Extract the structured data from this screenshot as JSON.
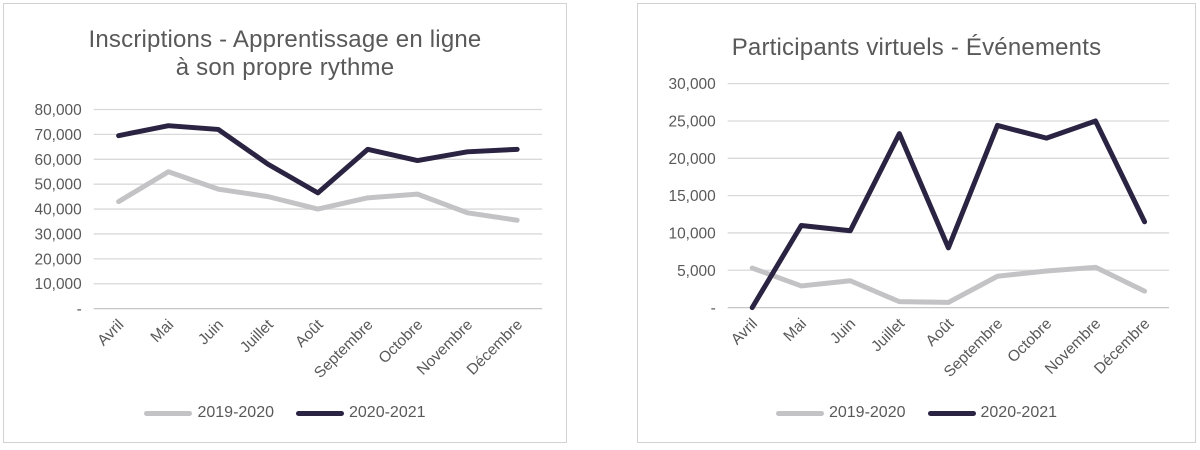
{
  "page": {
    "background_color": "#ffffff",
    "panel_border_color": "#d2d2d2",
    "text_color": "#595959",
    "gridline_color": "#d9d9d9",
    "axis_line_color": "#c6c6c6"
  },
  "chart_data": [
    {
      "type": "line",
      "title": "Inscriptions - Apprentissage en ligne à son propre rythme",
      "title_lines": [
        "Inscriptions - Apprentissage en ligne",
        "à son propre rythme"
      ],
      "categories": [
        "Avril",
        "Mai",
        "Juin",
        "Juillet",
        "Août",
        "Septembre",
        "Octobre",
        "Novembre",
        "Décembre"
      ],
      "series": [
        {
          "name": "2019-2020",
          "color": "#c3c2c4",
          "values": [
            43000,
            55000,
            48000,
            45000,
            40000,
            44500,
            46000,
            38500,
            35500
          ]
        },
        {
          "name": "2020-2021",
          "color": "#2b2342",
          "values": [
            69500,
            73500,
            72000,
            58000,
            46500,
            64000,
            59500,
            63000,
            64000
          ]
        }
      ],
      "ylim": [
        0,
        80000
      ],
      "ytick_step": 10000,
      "ytick_labels_top_to_bottom": [
        "80,000",
        "70,000",
        "60,000",
        "50,000",
        "40,000",
        "30,000",
        "20,000",
        "10,000",
        "-"
      ],
      "zero_label": "-",
      "grid": "horizontal-only",
      "legend_position": "bottom-center",
      "x_label_rotation_deg": 45
    },
    {
      "type": "line",
      "title": "Participants virtuels - Événements",
      "title_lines": [
        "Participants virtuels - Événements"
      ],
      "categories": [
        "Avril",
        "Mai",
        "Juin",
        "Juillet",
        "Août",
        "Septembre",
        "Octobre",
        "Novembre",
        "Décembre"
      ],
      "series": [
        {
          "name": "2019-2020",
          "color": "#c3c2c4",
          "values": [
            5300,
            2900,
            3600,
            800,
            700,
            4200,
            4900,
            5400,
            2200
          ]
        },
        {
          "name": "2020-2021",
          "color": "#2b2342",
          "values": [
            0,
            11000,
            10300,
            23300,
            8000,
            24400,
            22700,
            25000,
            11500
          ]
        }
      ],
      "ylim": [
        0,
        30000
      ],
      "ytick_step": 5000,
      "ytick_labels_top_to_bottom": [
        "30,000",
        "25,000",
        "20,000",
        "15,000",
        "10,000",
        "5,000",
        "-"
      ],
      "zero_label": "-",
      "grid": "horizontal-only",
      "legend_position": "bottom-center",
      "x_label_rotation_deg": 45
    }
  ]
}
